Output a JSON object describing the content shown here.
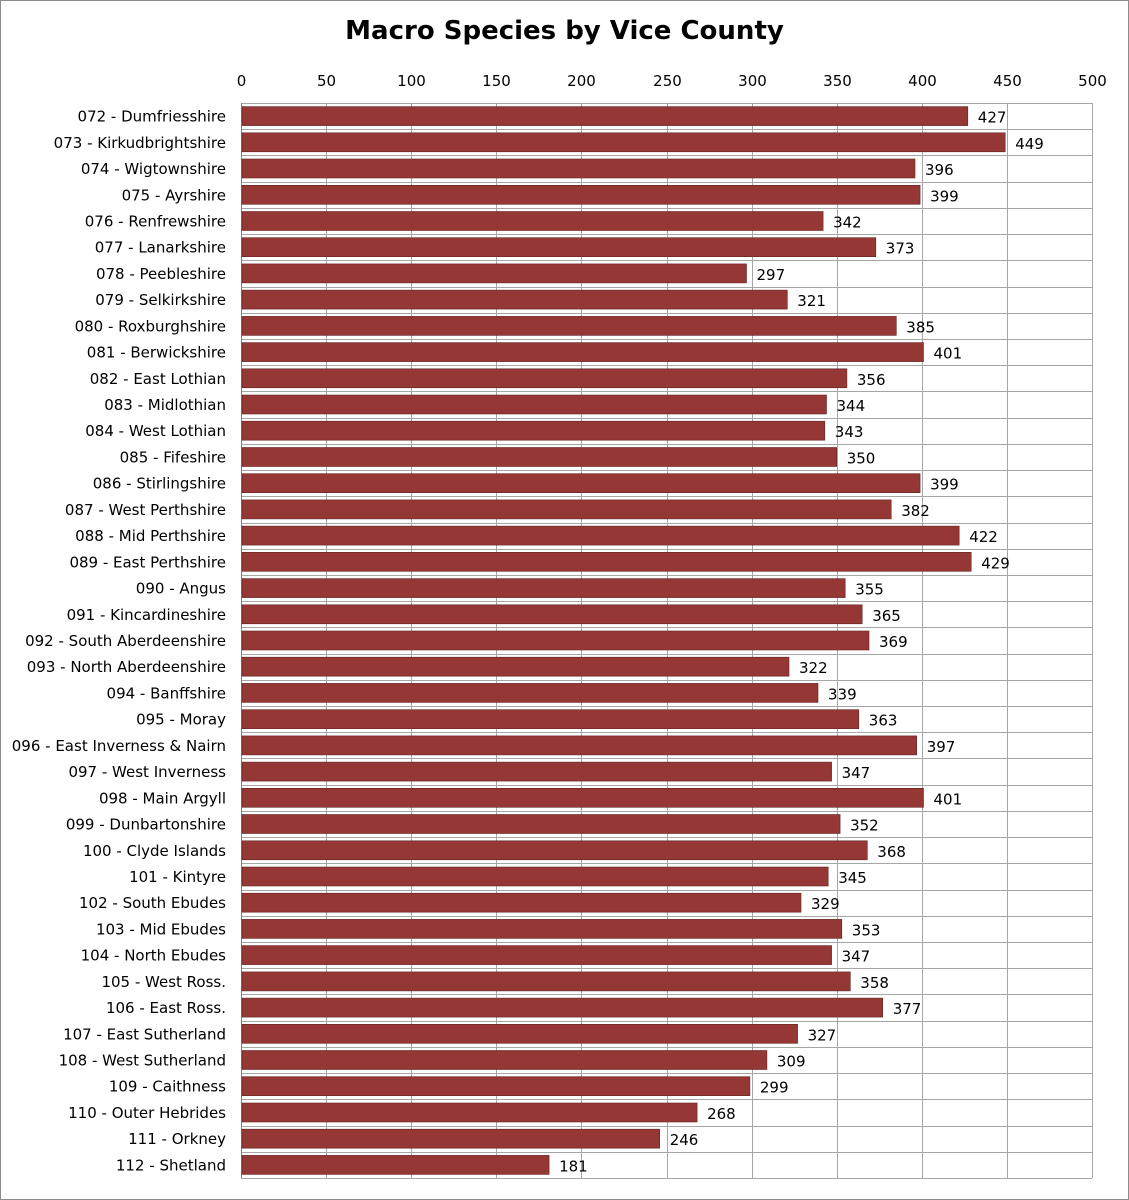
{
  "chart_data": {
    "type": "bar",
    "orientation": "horizontal",
    "title": "Macro Species by Vice County",
    "xlim": [
      0,
      500
    ],
    "x_ticks": [
      0,
      50,
      100,
      150,
      200,
      250,
      300,
      350,
      400,
      450,
      500
    ],
    "x_axis_position": "top",
    "grid": true,
    "legend": "none",
    "bar_color": "#953735",
    "categories": [
      "072 - Dumfriesshire",
      "073 - Kirkudbrightshire",
      "074 - Wigtownshire",
      "075 - Ayrshire",
      "076 - Renfrewshire",
      "077 - Lanarkshire",
      "078 - Peebleshire",
      "079 - Selkirkshire",
      "080 - Roxburghshire",
      "081 - Berwickshire",
      "082 - East Lothian",
      "083 - Midlothian",
      "084 - West Lothian",
      "085 - Fifeshire",
      "086 - Stirlingshire",
      "087 - West Perthshire",
      "088 - Mid Perthshire",
      "089 - East Perthshire",
      "090 - Angus",
      "091 - Kincardineshire",
      "092 - South Aberdeenshire",
      "093 - North Aberdeenshire",
      "094 - Banffshire",
      "095 - Moray",
      "096 - East Inverness & Nairn",
      "097 - West Inverness",
      "098 - Main Argyll",
      "099 - Dunbartonshire",
      "100 - Clyde Islands",
      "101 - Kintyre",
      "102 - South Ebudes",
      "103 - Mid Ebudes",
      "104 - North Ebudes",
      "105 - West Ross.",
      "106 - East Ross.",
      "107 - East Sutherland",
      "108 - West Sutherland",
      "109 - Caithness",
      "110 - Outer Hebrides",
      "111 - Orkney",
      "112 - Shetland"
    ],
    "values": [
      427,
      449,
      396,
      399,
      342,
      373,
      297,
      321,
      385,
      401,
      356,
      344,
      343,
      350,
      399,
      382,
      422,
      429,
      355,
      365,
      369,
      322,
      339,
      363,
      397,
      347,
      401,
      352,
      368,
      345,
      329,
      353,
      347,
      358,
      377,
      327,
      309,
      299,
      268,
      246,
      181
    ]
  }
}
